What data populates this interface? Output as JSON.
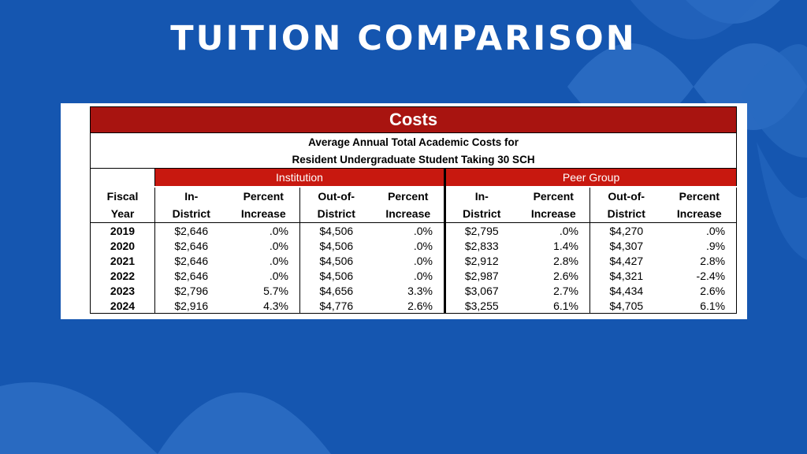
{
  "slide": {
    "title": "TUITION COMPARISON",
    "colors": {
      "background": "#1556b0",
      "deco": "#3b7ccf",
      "header_red": "#a81410",
      "group_red": "#c8180f"
    }
  },
  "table": {
    "banner": "Costs",
    "subtitle_line1": "Average Annual Total Academic Costs for",
    "subtitle_line2": "Resident Undergraduate Student Taking 30 SCH",
    "groups": [
      "Institution",
      "Peer Group"
    ],
    "headers_line1": [
      "Fiscal",
      "In-",
      "Percent",
      "Out-of-",
      "Percent",
      "In-",
      "Percent",
      "Out-of-",
      "Percent"
    ],
    "headers_line2": [
      "Year",
      "District",
      "Increase",
      "District",
      "Increase",
      "District",
      "Increase",
      "District",
      "Increase"
    ],
    "rows": [
      [
        "2019",
        "$2,646",
        ".0%",
        "$4,506",
        ".0%",
        "$2,795",
        ".0%",
        "$4,270",
        ".0%"
      ],
      [
        "2020",
        "$2,646",
        ".0%",
        "$4,506",
        ".0%",
        "$2,833",
        "1.4%",
        "$4,307",
        ".9%"
      ],
      [
        "2021",
        "$2,646",
        ".0%",
        "$4,506",
        ".0%",
        "$2,912",
        "2.8%",
        "$4,427",
        "2.8%"
      ],
      [
        "2022",
        "$2,646",
        ".0%",
        "$4,506",
        ".0%",
        "$2,987",
        "2.6%",
        "$4,321",
        "-2.4%"
      ],
      [
        "2023",
        "$2,796",
        "5.7%",
        "$4,656",
        "3.3%",
        "$3,067",
        "2.7%",
        "$4,434",
        "2.6%"
      ],
      [
        "2024",
        "$2,916",
        "4.3%",
        "$4,776",
        "2.6%",
        "$3,255",
        "6.1%",
        "$4,705",
        "6.1%"
      ]
    ]
  }
}
